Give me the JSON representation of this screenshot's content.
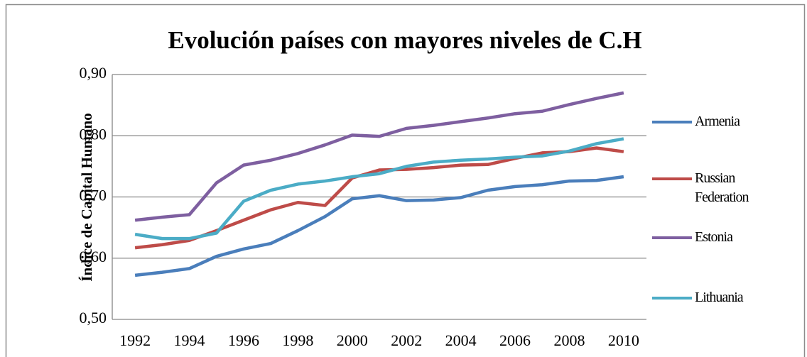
{
  "chart_data": {
    "type": "line",
    "title": "Evolución países con mayores niveles  de  C.H",
    "y_label": "Índice de Capital Humano",
    "x": [
      1992,
      1993,
      1994,
      1995,
      1996,
      1997,
      1998,
      1999,
      2000,
      2001,
      2002,
      2003,
      2004,
      2005,
      2006,
      2007,
      2008,
      2009,
      2010
    ],
    "xlim": [
      1991.16,
      2010.84
    ],
    "xticks": [
      1992,
      1994,
      1996,
      1998,
      2000,
      2002,
      2004,
      2006,
      2008,
      2010
    ],
    "ylim": [
      0.5,
      0.9
    ],
    "yticks": [
      {
        "value": 0.5,
        "label": "0,50"
      },
      {
        "value": 0.6,
        "label": "0,60"
      },
      {
        "value": 0.7,
        "label": "0,70"
      },
      {
        "value": 0.8,
        "label": "0,80"
      },
      {
        "value": 0.9,
        "label": "0,90"
      }
    ],
    "grid": true,
    "legend": "right",
    "series": [
      {
        "name": "Armenia",
        "color": "#4a7ebb",
        "values": [
          0.572,
          0.577,
          0.583,
          0.603,
          0.615,
          0.624,
          0.645,
          0.668,
          0.697,
          0.702,
          0.694,
          0.695,
          0.699,
          0.711,
          0.717,
          0.72,
          0.726,
          0.727,
          0.733
        ]
      },
      {
        "name": "Russian Federation",
        "color": "#be4b48",
        "values": [
          0.617,
          0.622,
          0.629,
          0.645,
          0.662,
          0.679,
          0.691,
          0.686,
          0.731,
          0.744,
          0.745,
          0.748,
          0.752,
          0.753,
          0.763,
          0.772,
          0.774,
          0.78,
          0.774
        ]
      },
      {
        "name": "Estonia",
        "color": "#7e5fa0",
        "values": [
          0.662,
          0.667,
          0.671,
          0.723,
          0.752,
          0.76,
          0.771,
          0.785,
          0.801,
          0.799,
          0.812,
          0.817,
          0.823,
          0.829,
          0.836,
          0.84,
          0.851,
          0.861,
          0.87
        ]
      },
      {
        "name": "Lithuania",
        "color": "#4bacc6",
        "values": [
          0.639,
          0.632,
          0.632,
          0.641,
          0.693,
          0.711,
          0.721,
          0.726,
          0.733,
          0.738,
          0.75,
          0.757,
          0.76,
          0.762,
          0.765,
          0.767,
          0.775,
          0.787,
          0.795
        ]
      }
    ]
  }
}
